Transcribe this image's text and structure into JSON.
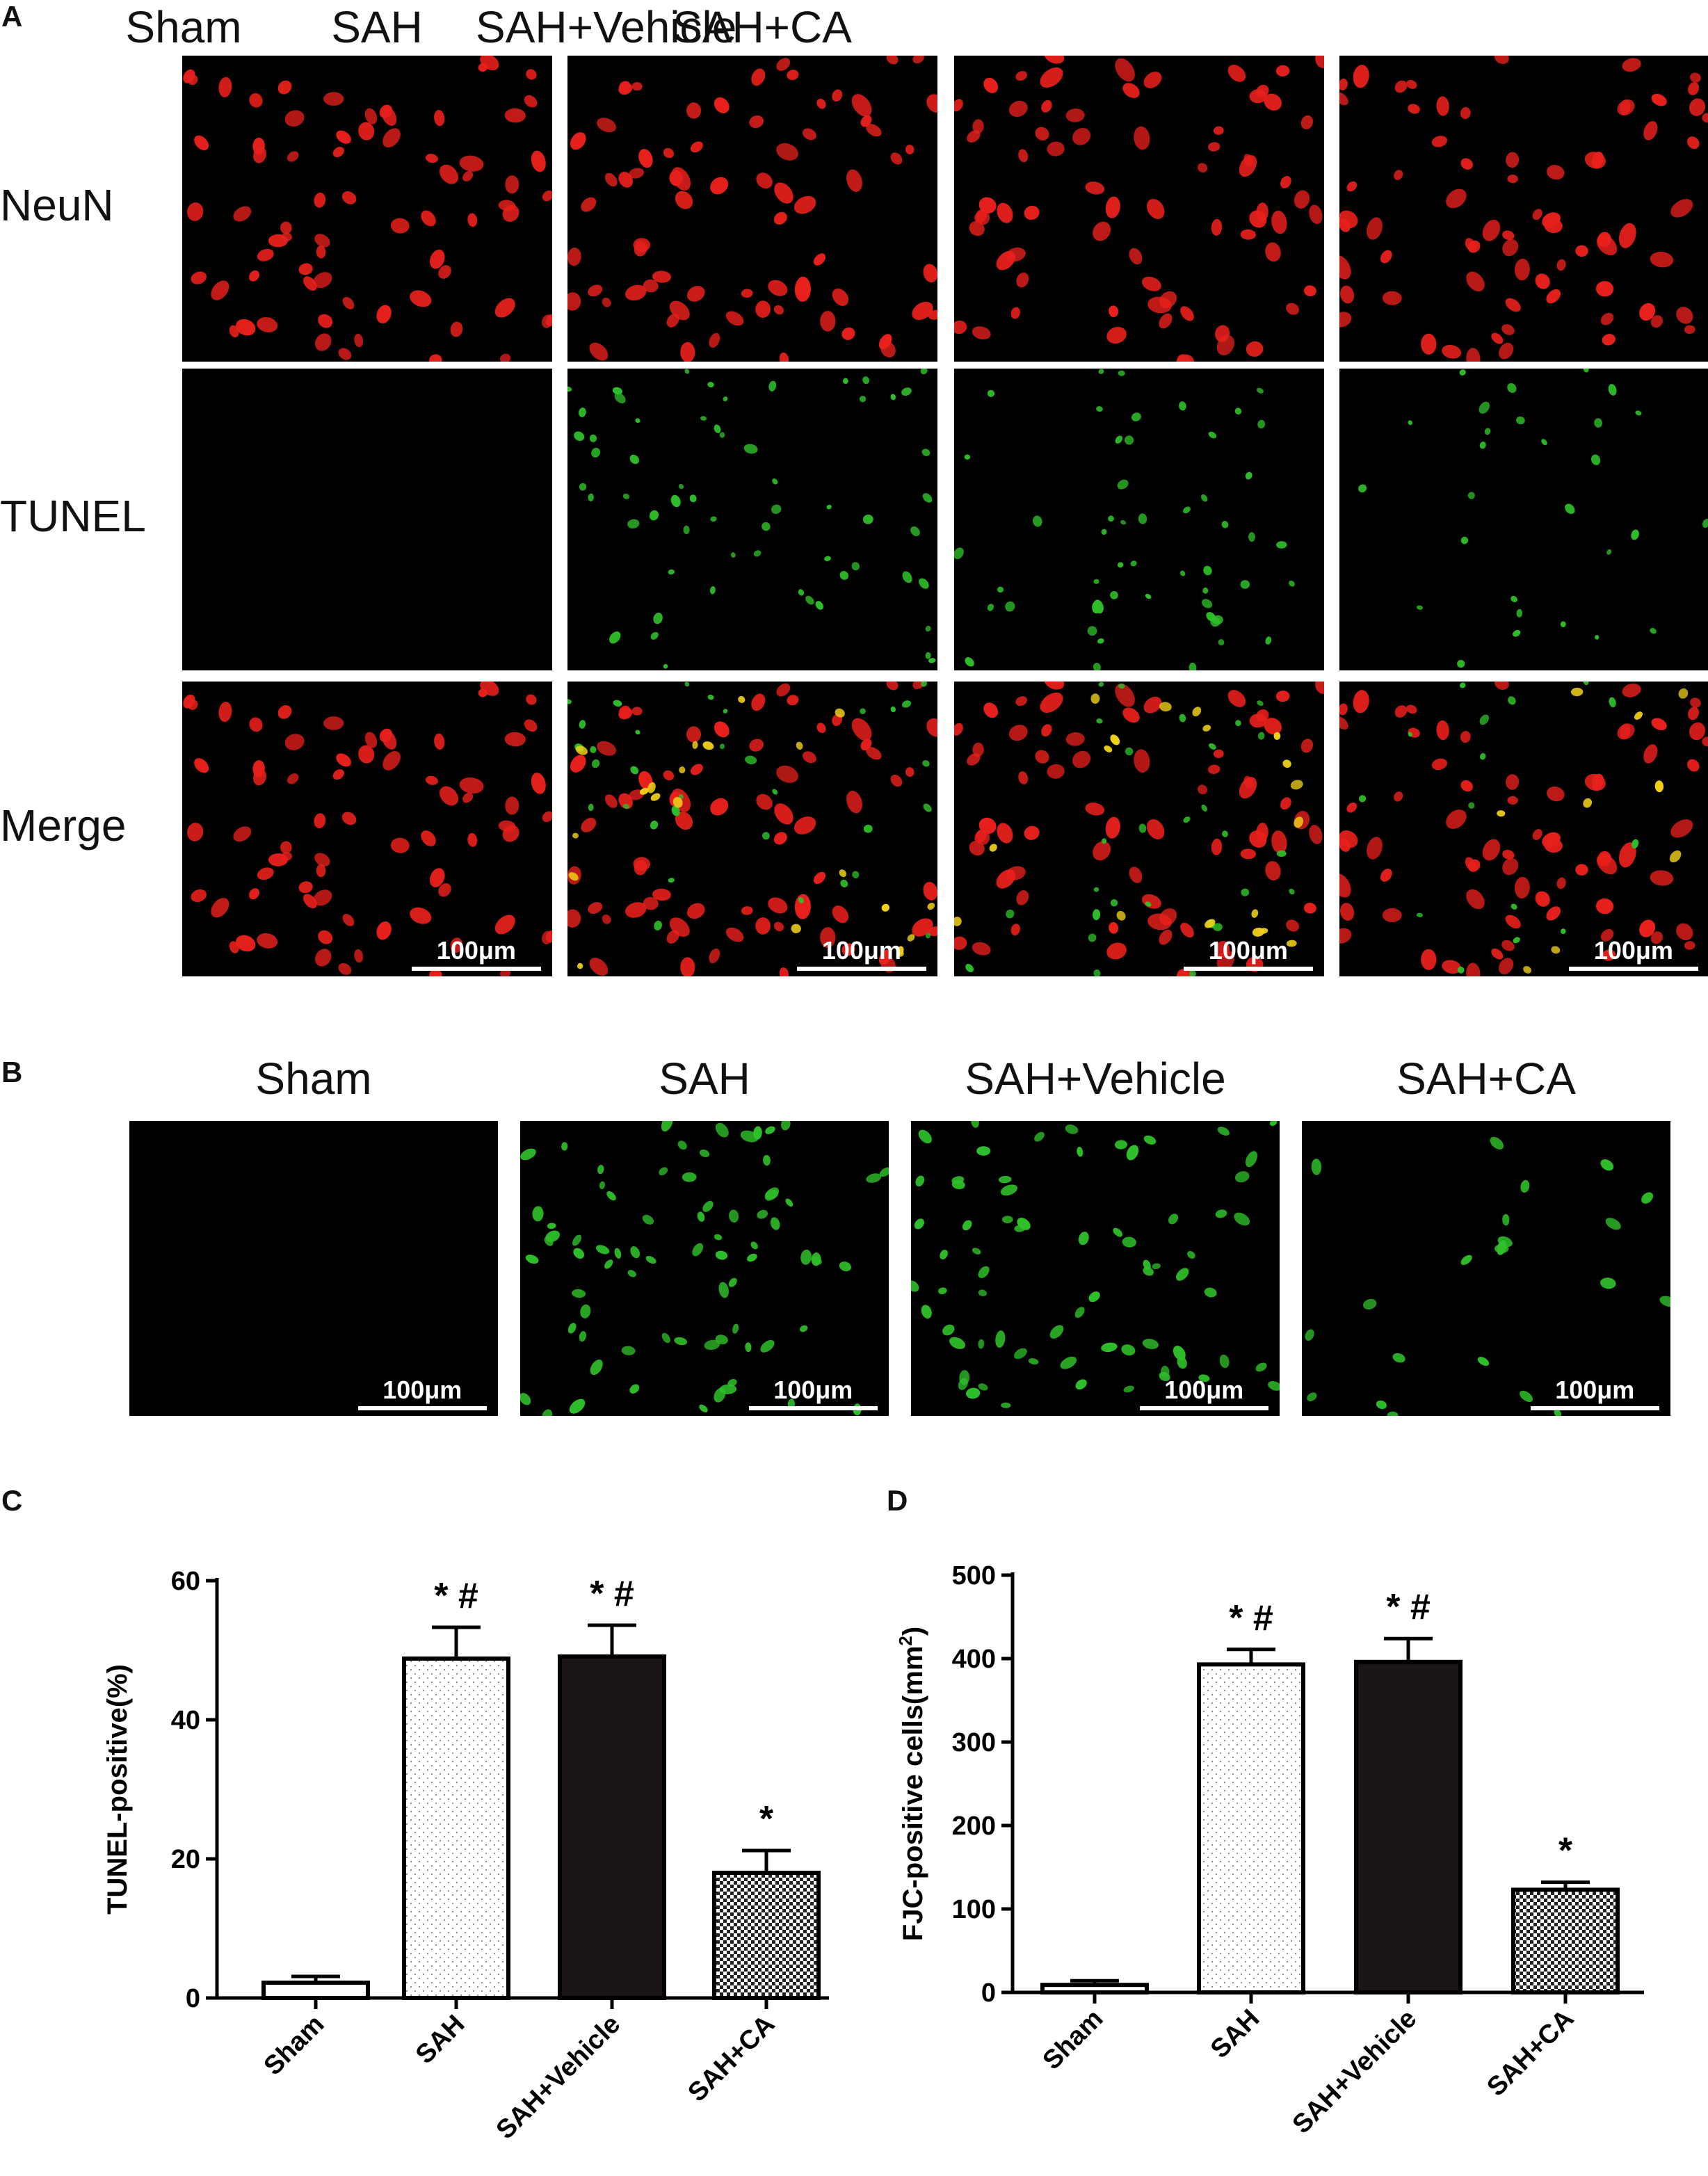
{
  "panel_a": {
    "letter": "A",
    "columns": [
      "Sham",
      "SAH",
      "SAH+Vehicle",
      "SAH+CA"
    ],
    "rows": [
      "NeuN",
      "TUNEL",
      "Merge"
    ],
    "scale_label": "100μm"
  },
  "panel_b": {
    "letter": "B",
    "columns": [
      "Sham",
      "SAH",
      "SAH+Vehicle",
      "SAH+CA"
    ],
    "scale_label": "100μm"
  },
  "colors": {
    "neun": "#e8201c",
    "tunel": "#2fbf2a",
    "merge": "#f2d21a",
    "bar_dark": "#1a1414"
  },
  "chart_data": [
    {
      "panel": "C",
      "type": "bar",
      "categories": [
        "Sham",
        "SAH",
        "SAH+Vehicle",
        "SAH+CA"
      ],
      "values": [
        2.2,
        48.8,
        49.1,
        18.0
      ],
      "errors": [
        0.9,
        4.5,
        4.5,
        3.2
      ],
      "significance": [
        "",
        "* #",
        "* #",
        "*"
      ],
      "fills": [
        "white",
        "dots",
        "black",
        "checker"
      ],
      "ylabel": "TUNEL-positive(%)",
      "ylim": [
        0,
        60
      ],
      "yticks": [
        0,
        20,
        40,
        60
      ]
    },
    {
      "panel": "D",
      "type": "bar",
      "categories": [
        "Sham",
        "SAH",
        "SAH+Vehicle",
        "SAH+CA"
      ],
      "values": [
        9,
        393,
        396,
        123
      ],
      "errors": [
        5,
        18,
        28,
        9
      ],
      "significance": [
        "",
        "* #",
        "* #",
        "*"
      ],
      "fills": [
        "white",
        "dots",
        "black",
        "checker"
      ],
      "ylabel": "FJC-positive cells(mm",
      "ylabel_sup": "2",
      "ylabel_end": ")",
      "ylim": [
        0,
        500
      ],
      "yticks": [
        0,
        100,
        200,
        300,
        400,
        500
      ]
    }
  ]
}
